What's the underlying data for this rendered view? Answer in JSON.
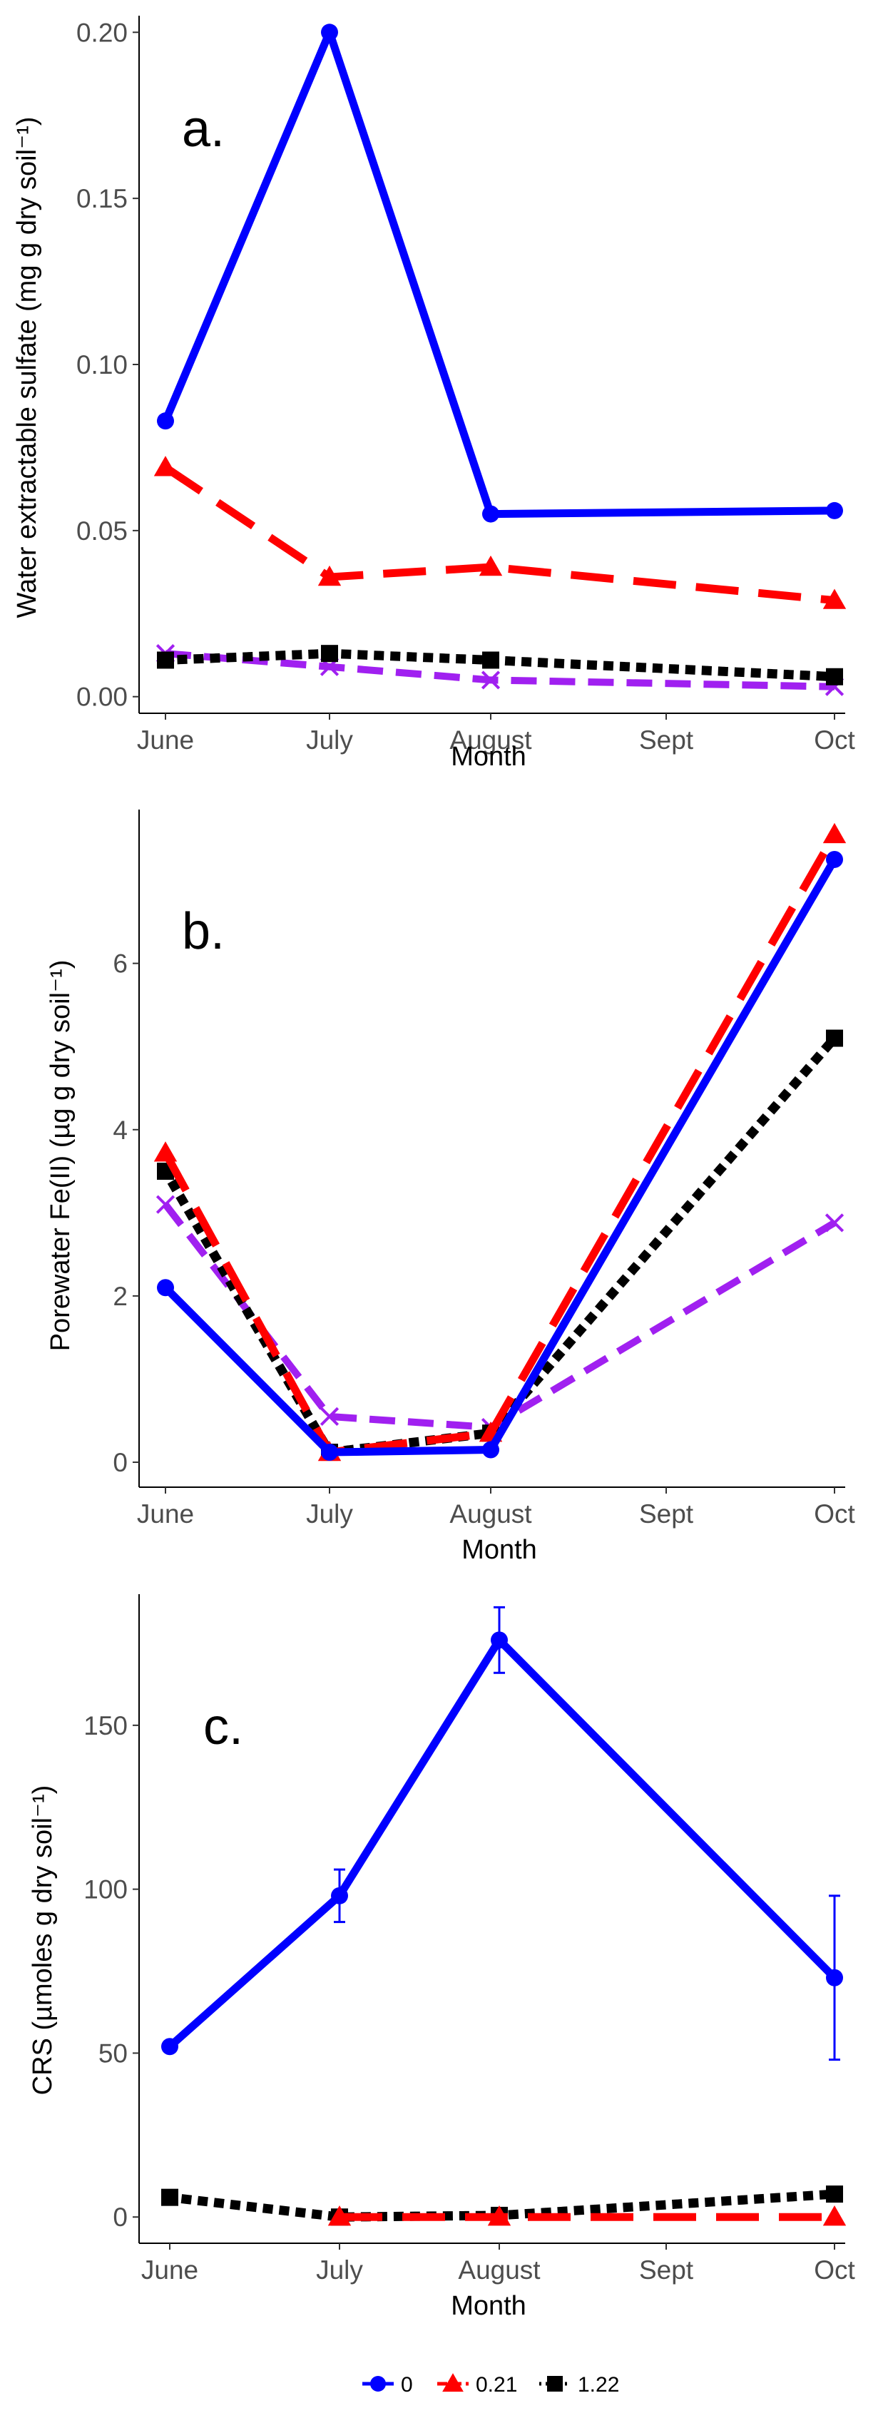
{
  "chart_data": [
    {
      "type": "line",
      "panel_label": "a.",
      "title": "",
      "xlabel": "Month",
      "ylabel": "Water extractable sulfate (mg g dry soil⁻¹)",
      "categories": [
        "June",
        "July",
        "August",
        "Sept",
        "Oct"
      ],
      "ylim": [
        -0.005,
        0.205
      ],
      "yticks": [
        "0.00",
        "0.05",
        "0.10",
        "0.15",
        "0.20"
      ],
      "ytick_values": [
        0,
        0.05,
        0.1,
        0.15,
        0.2
      ],
      "series": [
        {
          "name": "0",
          "color": "#0000ff",
          "marker": "circle",
          "dash": "solid",
          "values": [
            0.083,
            0.2,
            0.055,
            null,
            0.056
          ],
          "err": [
            0,
            0,
            0,
            0,
            0
          ]
        },
        {
          "name": "0.21",
          "color": "#ff0000",
          "marker": "triangle",
          "dash": "long-dash",
          "values": [
            0.069,
            0.036,
            0.039,
            null,
            0.029
          ],
          "err": [
            0,
            0,
            0,
            0,
            0
          ]
        },
        {
          "name": "1.22",
          "color": "#000000",
          "marker": "square",
          "dash": "dotted",
          "values": [
            0.011,
            0.013,
            0.011,
            null,
            0.006
          ],
          "err": [
            0,
            0,
            0,
            0,
            0
          ]
        },
        {
          "name": "",
          "color": "#a020f0",
          "marker": "x",
          "dash": "dash-dot",
          "values": [
            0.013,
            0.009,
            0.005,
            null,
            0.003
          ],
          "err": [
            0,
            0,
            0,
            0,
            0
          ]
        }
      ]
    },
    {
      "type": "line",
      "panel_label": "b.",
      "title": "",
      "xlabel": "Month",
      "ylabel": "Porewater Fe(II) (µg g dry soil⁻¹)",
      "categories": [
        "June",
        "July",
        "August",
        "Sept",
        "Oct"
      ],
      "ylim": [
        -0.3,
        7.85
      ],
      "yticks": [
        "0",
        "2",
        "4",
        "6"
      ],
      "ytick_values": [
        0,
        2,
        4,
        6
      ],
      "series": [
        {
          "name": "0",
          "color": "#0000ff",
          "marker": "circle",
          "dash": "solid",
          "values": [
            2.1,
            0.12,
            0.15,
            null,
            7.25
          ],
          "err": [
            0,
            0,
            0,
            0,
            0
          ]
        },
        {
          "name": "0.21",
          "color": "#ff0000",
          "marker": "triangle",
          "dash": "long-dash",
          "values": [
            3.72,
            0.12,
            0.35,
            null,
            7.55
          ],
          "err": [
            0,
            0,
            0,
            0,
            0
          ]
        },
        {
          "name": "1.22",
          "color": "#000000",
          "marker": "square",
          "dash": "dotted",
          "values": [
            3.5,
            0.12,
            0.35,
            null,
            5.1
          ],
          "err": [
            0,
            0,
            0,
            0,
            0
          ]
        },
        {
          "name": "",
          "color": "#a020f0",
          "marker": "x",
          "dash": "dash-dot",
          "values": [
            3.1,
            0.55,
            0.42,
            null,
            2.88
          ],
          "err": [
            0,
            0,
            0,
            0,
            0
          ]
        }
      ]
    },
    {
      "type": "line",
      "panel_label": "c.",
      "title": "",
      "xlabel": "Month",
      "ylabel": "CRS (µmoles g dry soil⁻¹)",
      "categories": [
        "June",
        "July",
        "August",
        "Sept",
        "Oct"
      ],
      "ylim": [
        -8,
        190
      ],
      "yticks": [
        "0",
        "50",
        "100",
        "150"
      ],
      "ytick_values": [
        0,
        50,
        100,
        150
      ],
      "series": [
        {
          "name": "0",
          "color": "#0000ff",
          "marker": "circle",
          "dash": "solid",
          "values": [
            52,
            98,
            176,
            null,
            73
          ],
          "err": [
            0,
            8,
            10,
            0,
            25
          ]
        },
        {
          "name": "0.21",
          "color": "#ff0000",
          "marker": "triangle",
          "dash": "long-dash",
          "values": [
            null,
            0,
            0,
            null,
            0
          ],
          "err": [
            0,
            0,
            0,
            0,
            0
          ]
        },
        {
          "name": "1.22",
          "color": "#000000",
          "marker": "square",
          "dash": "dotted",
          "values": [
            6,
            0,
            0.5,
            null,
            7
          ],
          "err": [
            0,
            0,
            0,
            0,
            0
          ]
        }
      ]
    }
  ],
  "legend": {
    "placement": "bottom-center",
    "entries": [
      {
        "label": "0",
        "color": "#0000ff",
        "marker": "circle"
      },
      {
        "label": "0.21",
        "color": "#ff0000",
        "marker": "triangle"
      },
      {
        "label": "1.22",
        "color": "#000000",
        "marker": "square"
      }
    ]
  }
}
